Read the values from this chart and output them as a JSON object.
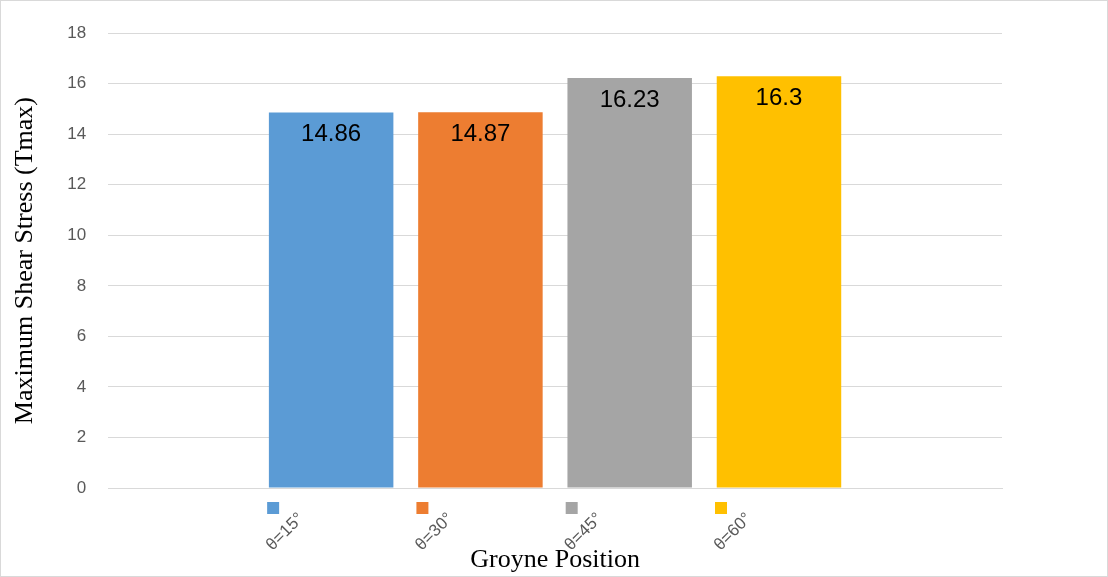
{
  "chart_data": {
    "type": "bar",
    "categories": [
      null
    ],
    "series": [
      {
        "name": "θ=15°",
        "color": "#5b9bd5",
        "values": [
          14.86
        ]
      },
      {
        "name": "θ=30°",
        "color": "#ed7d31",
        "values": [
          14.87
        ]
      },
      {
        "name": "θ=45°",
        "color": "#a5a5a5",
        "values": [
          16.23
        ]
      },
      {
        "name": "θ=60°",
        "color": "#ffc000",
        "values": [
          16.3
        ]
      }
    ],
    "xlabel": "Groyne Position",
    "ylabel": "Maximum Shear Stress (Tmax)",
    "ylim": [
      0,
      18
    ],
    "yticks": [
      0,
      2,
      4,
      6,
      8,
      10,
      12,
      14,
      16,
      18
    ],
    "grid": "y",
    "legend": "bottom",
    "data_labels": true
  }
}
